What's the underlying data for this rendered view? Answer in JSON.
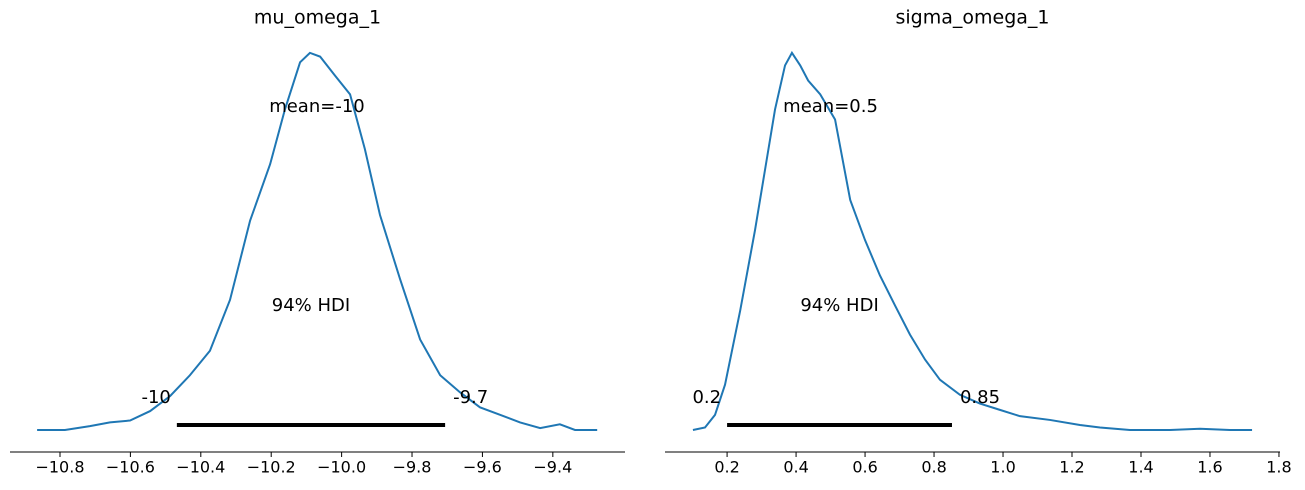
{
  "chart_data": [
    {
      "type": "line",
      "title": "mu_omega_1",
      "color": "#1f77b4",
      "x": [
        -10.865,
        -10.786,
        -10.715,
        -10.658,
        -10.601,
        -10.544,
        -10.487,
        -10.431,
        -10.374,
        -10.317,
        -10.26,
        -10.203,
        -10.161,
        -10.118,
        -10.09,
        -10.061,
        -10.019,
        -9.976,
        -9.934,
        -9.891,
        -9.834,
        -9.777,
        -9.72,
        -9.664,
        -9.607,
        -9.55,
        -9.493,
        -9.436,
        -9.38,
        -9.337,
        -9.274
      ],
      "values": [
        0,
        0,
        0.02,
        0.04,
        0.05,
        0.1,
        0.18,
        0.29,
        0.42,
        0.69,
        1.11,
        1.41,
        1.7,
        1.95,
        2.0,
        1.98,
        1.88,
        1.78,
        1.49,
        1.14,
        0.8,
        0.48,
        0.29,
        0.2,
        0.12,
        0.08,
        0.04,
        0.01,
        0.03,
        0,
        0
      ],
      "xlim": [
        -10.942,
        -9.195
      ],
      "ylim": [
        -0.117,
        2.1
      ],
      "xticks": [
        {
          "value": -10.8,
          "label": "−10.8"
        },
        {
          "value": -10.6,
          "label": "−10.6"
        },
        {
          "value": -10.4,
          "label": "−10.4"
        },
        {
          "value": -10.2,
          "label": "−10.2"
        },
        {
          "value": -10.0,
          "label": "−10.0"
        },
        {
          "value": -9.8,
          "label": "−9.8"
        },
        {
          "value": -9.6,
          "label": "−9.6"
        },
        {
          "value": -9.4,
          "label": "−9.4"
        }
      ],
      "mean": {
        "value": -10.07,
        "label": "mean=-10"
      },
      "hdi_label": "94% HDI",
      "hdi": [
        {
          "value": -10.468,
          "label": "-10"
        },
        {
          "value": -9.706,
          "label": "-9.7"
        }
      ]
    },
    {
      "type": "line",
      "title": "sigma_omega_1",
      "color": "#1f77b4",
      "x": [
        0.101,
        0.136,
        0.165,
        0.194,
        0.238,
        0.281,
        0.31,
        0.339,
        0.368,
        0.388,
        0.412,
        0.435,
        0.47,
        0.513,
        0.557,
        0.6,
        0.643,
        0.687,
        0.73,
        0.774,
        0.817,
        0.875,
        0.933,
        0.991,
        1.049,
        1.136,
        1.223,
        1.281,
        1.368,
        1.484,
        1.571,
        1.658,
        1.722
      ],
      "values": [
        0,
        0.02,
        0.12,
        0.36,
        0.95,
        1.59,
        2.07,
        2.55,
        2.9,
        3.0,
        2.9,
        2.78,
        2.67,
        2.47,
        1.83,
        1.51,
        1.23,
        0.99,
        0.76,
        0.56,
        0.4,
        0.28,
        0.21,
        0.16,
        0.11,
        0.08,
        0.04,
        0.02,
        0,
        0,
        0.01,
        0,
        0
      ],
      "xlim": [
        0.02,
        1.803
      ],
      "ylim": [
        -0.175,
        3.15
      ],
      "xticks": [
        0.2,
        0.4,
        0.6,
        0.8,
        {
          "value": 1.0,
          "label": "1.0"
        },
        1.2,
        1.4,
        1.6,
        1.8
      ],
      "mean": {
        "value": 0.5,
        "label": "mean=0.5"
      },
      "hdi_label": "94% HDI",
      "hdi": [
        {
          "value": 0.2,
          "label": "0.2"
        },
        {
          "value": 0.852,
          "label": "0.85"
        }
      ]
    }
  ]
}
